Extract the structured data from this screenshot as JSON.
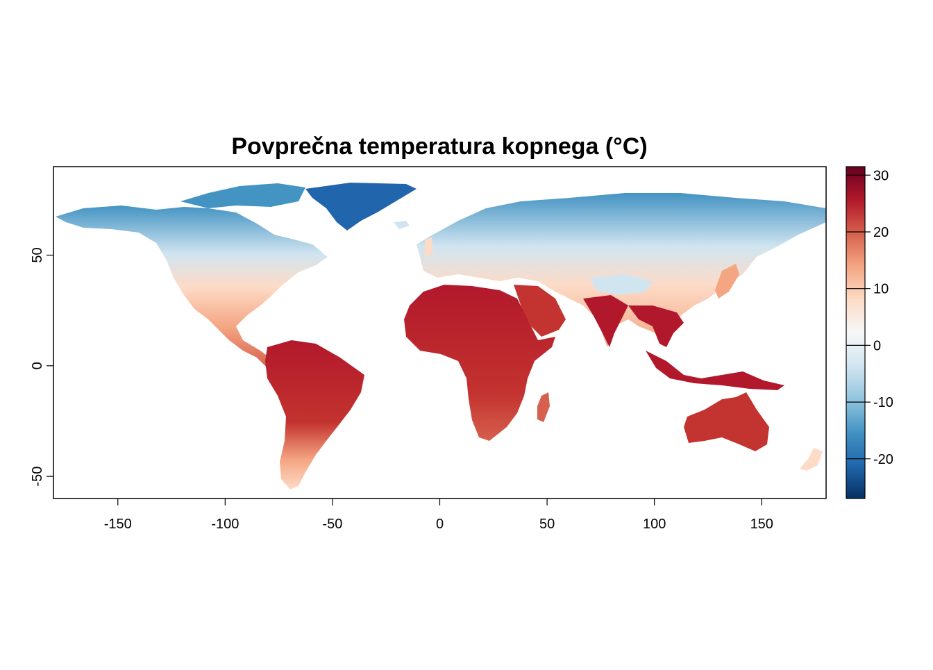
{
  "map": {
    "title": "Povprečna temperatura kopnega (°C)",
    "x_axis": {
      "range": [
        -180,
        180
      ],
      "ticks": [
        -150,
        -100,
        -50,
        0,
        50,
        100,
        150
      ],
      "tick_labels": [
        "-150",
        "-100",
        "-50",
        "0",
        "50",
        "100",
        "150"
      ]
    },
    "y_axis": {
      "range": [
        -60,
        90
      ],
      "ticks": [
        50,
        0,
        -50
      ],
      "tick_labels": [
        "50",
        "0",
        "-50"
      ]
    },
    "color_scale": {
      "range": [
        -27,
        31.5
      ],
      "ticks": [
        30,
        20,
        10,
        0,
        -10,
        -20
      ],
      "tick_labels": [
        "30",
        "20",
        "10",
        "0",
        "-10",
        "-20"
      ],
      "colors": [
        "#053061",
        "#2166ac",
        "#4393c3",
        "#92c5de",
        "#d1e5f0",
        "#f7f7f7",
        "#fddbc7",
        "#f4a582",
        "#d6604d",
        "#b2182b",
        "#67001f"
      ]
    },
    "land_colors": {
      "tropical": "#b2182b",
      "hot": "#c3332f",
      "warm": "#d6604d",
      "mild": "#f4a582",
      "cool": "#fddbc7",
      "near_zero": "#f7f7f7",
      "cold": "#d1e5f0",
      "colder": "#92c5de",
      "very_cold": "#4393c3",
      "ice": "#2166ac"
    }
  }
}
